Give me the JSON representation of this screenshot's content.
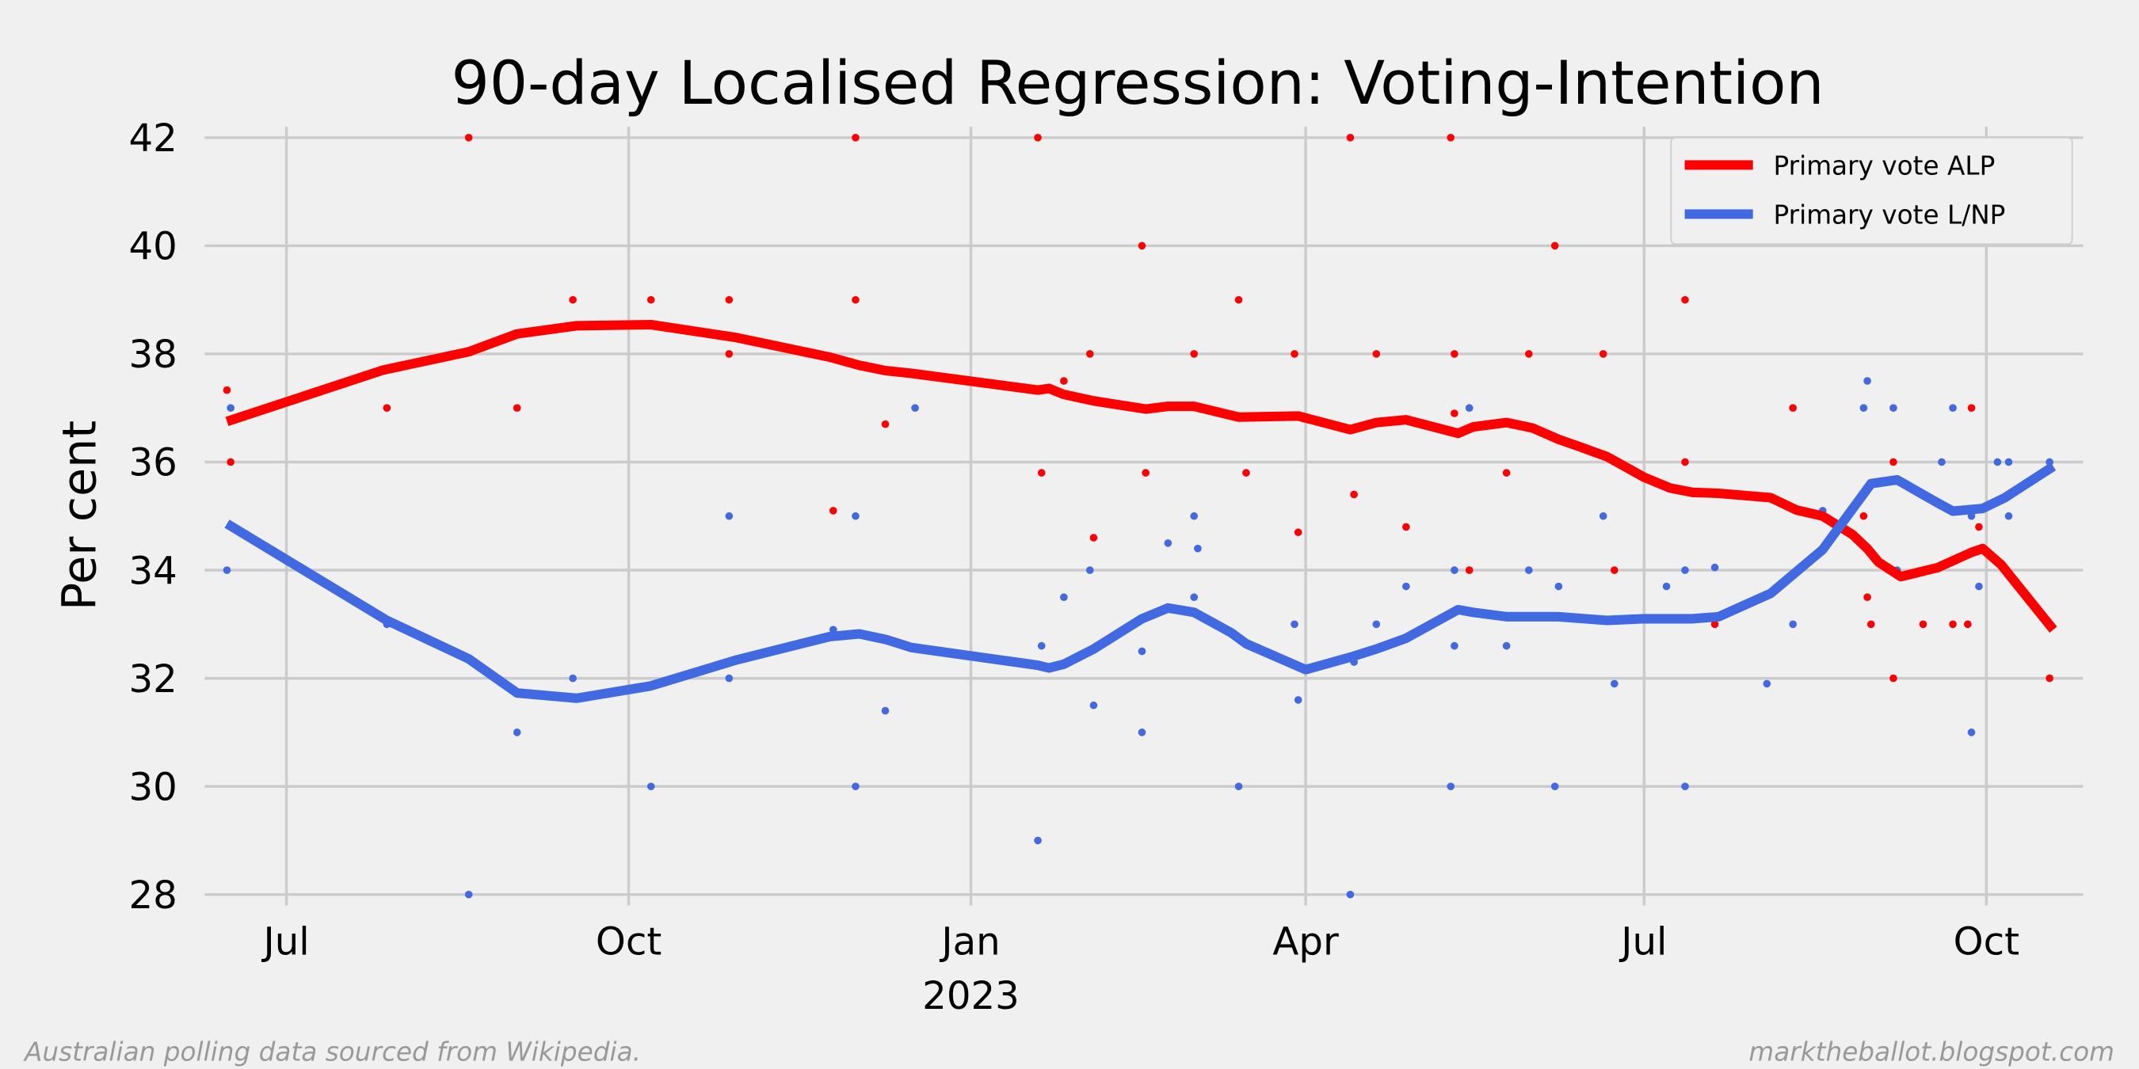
{
  "chart_data": {
    "type": "line",
    "title": "90-day Localised Regression: Voting-Intention",
    "xlabel": "",
    "ylabel": "Per cent",
    "ylim": [
      27.8,
      42.2
    ],
    "xlim": [
      "2022-06-09",
      "2023-10-27"
    ],
    "yticks": [
      28,
      30,
      32,
      34,
      36,
      38,
      40,
      42
    ],
    "xticks": [
      {
        "date": "2022-07-01",
        "label": "Jul",
        "sub": ""
      },
      {
        "date": "2022-10-01",
        "label": "Oct",
        "sub": ""
      },
      {
        "date": "2023-01-01",
        "label": "Jan",
        "sub": "2023"
      },
      {
        "date": "2023-04-01",
        "label": "Apr",
        "sub": ""
      },
      {
        "date": "2023-07-01",
        "label": "Jul",
        "sub": ""
      },
      {
        "date": "2023-10-01",
        "label": "Oct",
        "sub": ""
      }
    ],
    "grid": true,
    "legend_position": "top-right",
    "series": [
      {
        "name": "Primary vote ALP",
        "color": "#ff0000",
        "line": [
          [
            "2022-06-15",
            36.75
          ],
          [
            "2022-07-27",
            37.7
          ],
          [
            "2022-08-19",
            38.04
          ],
          [
            "2022-09-01",
            38.37
          ],
          [
            "2022-09-17",
            38.52
          ],
          [
            "2022-10-07",
            38.54
          ],
          [
            "2022-10-30",
            38.3
          ],
          [
            "2022-11-24",
            37.94
          ],
          [
            "2022-12-02",
            37.79
          ],
          [
            "2022-12-09",
            37.69
          ],
          [
            "2022-12-16",
            37.64
          ],
          [
            "2023-01-19",
            37.33
          ],
          [
            "2023-01-22",
            37.36
          ],
          [
            "2023-01-26",
            37.25
          ],
          [
            "2023-02-03",
            37.13
          ],
          [
            "2023-02-17",
            36.98
          ],
          [
            "2023-02-23",
            37.03
          ],
          [
            "2023-03-02",
            37.03
          ],
          [
            "2023-03-14",
            36.83
          ],
          [
            "2023-03-30",
            36.85
          ],
          [
            "2023-04-13",
            36.6
          ],
          [
            "2023-04-20",
            36.73
          ],
          [
            "2023-04-28",
            36.78
          ],
          [
            "2023-05-12",
            36.53
          ],
          [
            "2023-05-16",
            36.65
          ],
          [
            "2023-05-25",
            36.73
          ],
          [
            "2023-06-01",
            36.63
          ],
          [
            "2023-06-08",
            36.42
          ],
          [
            "2023-06-13",
            36.3
          ],
          [
            "2023-06-21",
            36.1
          ],
          [
            "2023-07-01",
            35.72
          ],
          [
            "2023-07-08",
            35.52
          ],
          [
            "2023-07-14",
            35.44
          ],
          [
            "2023-07-21",
            35.42
          ],
          [
            "2023-08-04",
            35.34
          ],
          [
            "2023-08-11",
            35.11
          ],
          [
            "2023-08-18",
            35.0
          ],
          [
            "2023-08-26",
            34.66
          ],
          [
            "2023-08-30",
            34.4
          ],
          [
            "2023-09-02",
            34.15
          ],
          [
            "2023-09-08",
            33.88
          ],
          [
            "2023-09-18",
            34.05
          ],
          [
            "2023-09-27",
            34.33
          ],
          [
            "2023-09-30",
            34.4
          ],
          [
            "2023-10-05",
            34.1
          ],
          [
            "2023-10-19",
            32.9
          ]
        ],
        "polls": [
          [
            "2022-06-15",
            37.33
          ],
          [
            "2022-06-16",
            36.0
          ],
          [
            "2022-07-28",
            37.0
          ],
          [
            "2022-08-19",
            42.0
          ],
          [
            "2022-09-01",
            37.0
          ],
          [
            "2022-09-16",
            39.0
          ],
          [
            "2022-10-07",
            39.0
          ],
          [
            "2022-10-28",
            39.0
          ],
          [
            "2022-10-28",
            38.0
          ],
          [
            "2022-11-25",
            35.1
          ],
          [
            "2022-12-01",
            42.0
          ],
          [
            "2022-12-01",
            39.0
          ],
          [
            "2022-12-09",
            36.7
          ],
          [
            "2023-01-19",
            42.0
          ],
          [
            "2023-01-20",
            35.8
          ],
          [
            "2023-01-26",
            37.5
          ],
          [
            "2023-02-02",
            38.0
          ],
          [
            "2023-02-03",
            34.6
          ],
          [
            "2023-02-16",
            40.0
          ],
          [
            "2023-02-17",
            35.8
          ],
          [
            "2023-03-02",
            38.0
          ],
          [
            "2023-03-14",
            39.0
          ],
          [
            "2023-03-16",
            35.8
          ],
          [
            "2023-03-29",
            38.0
          ],
          [
            "2023-03-30",
            34.7
          ],
          [
            "2023-04-13",
            42.0
          ],
          [
            "2023-04-14",
            35.4
          ],
          [
            "2023-04-20",
            38.0
          ],
          [
            "2023-04-28",
            34.8
          ],
          [
            "2023-05-10",
            42.0
          ],
          [
            "2023-05-11",
            38.0
          ],
          [
            "2023-05-11",
            36.9
          ],
          [
            "2023-05-15",
            34.0
          ],
          [
            "2023-05-25",
            35.8
          ],
          [
            "2023-05-31",
            38.0
          ],
          [
            "2023-06-07",
            40.0
          ],
          [
            "2023-06-20",
            38.0
          ],
          [
            "2023-06-23",
            34.0
          ],
          [
            "2023-07-12",
            39.0
          ],
          [
            "2023-07-12",
            36.0
          ],
          [
            "2023-07-20",
            33.0
          ],
          [
            "2023-08-10",
            37.0
          ],
          [
            "2023-08-13",
            35.1
          ],
          [
            "2023-08-29",
            35.0
          ],
          [
            "2023-08-30",
            33.5
          ],
          [
            "2023-08-31",
            33.0
          ],
          [
            "2023-09-06",
            36.0
          ],
          [
            "2023-09-06",
            32.0
          ],
          [
            "2023-09-14",
            33.0
          ],
          [
            "2023-09-22",
            33.0
          ],
          [
            "2023-09-26",
            33.0
          ],
          [
            "2023-09-27",
            37.0
          ],
          [
            "2023-09-29",
            34.8
          ],
          [
            "2023-10-18",
            32.0
          ]
        ]
      },
      {
        "name": "Primary vote L/NP",
        "color": "#4169e1",
        "line": [
          [
            "2022-06-15",
            34.86
          ],
          [
            "2022-07-28",
            33.07
          ],
          [
            "2022-08-19",
            32.36
          ],
          [
            "2022-09-01",
            31.73
          ],
          [
            "2022-09-17",
            31.63
          ],
          [
            "2022-10-07",
            31.86
          ],
          [
            "2022-10-30",
            32.34
          ],
          [
            "2022-11-24",
            32.77
          ],
          [
            "2022-12-02",
            32.82
          ],
          [
            "2022-12-09",
            32.72
          ],
          [
            "2022-12-16",
            32.57
          ],
          [
            "2023-01-19",
            32.24
          ],
          [
            "2023-01-22",
            32.19
          ],
          [
            "2023-01-26",
            32.26
          ],
          [
            "2023-02-03",
            32.54
          ],
          [
            "2023-02-16",
            33.1
          ],
          [
            "2023-02-23",
            33.3
          ],
          [
            "2023-03-02",
            33.22
          ],
          [
            "2023-03-12",
            32.84
          ],
          [
            "2023-03-16",
            32.64
          ],
          [
            "2023-04-01",
            32.16
          ],
          [
            "2023-04-13",
            32.39
          ],
          [
            "2023-04-20",
            32.54
          ],
          [
            "2023-04-28",
            32.74
          ],
          [
            "2023-05-12",
            33.27
          ],
          [
            "2023-05-16",
            33.22
          ],
          [
            "2023-05-25",
            33.14
          ],
          [
            "2023-06-08",
            33.14
          ],
          [
            "2023-06-21",
            33.07
          ],
          [
            "2023-07-01",
            33.1
          ],
          [
            "2023-07-14",
            33.1
          ],
          [
            "2023-07-21",
            33.14
          ],
          [
            "2023-08-04",
            33.57
          ],
          [
            "2023-08-18",
            34.38
          ],
          [
            "2023-08-31",
            35.6
          ],
          [
            "2023-09-07",
            35.67
          ],
          [
            "2023-09-18",
            35.24
          ],
          [
            "2023-09-22",
            35.09
          ],
          [
            "2023-09-30",
            35.14
          ],
          [
            "2023-10-06",
            35.34
          ],
          [
            "2023-10-19",
            35.92
          ]
        ],
        "polls": [
          [
            "2022-06-16",
            37.0
          ],
          [
            "2022-06-15",
            34.0
          ],
          [
            "2022-07-28",
            33.0
          ],
          [
            "2022-08-19",
            28.0
          ],
          [
            "2022-09-01",
            31.0
          ],
          [
            "2022-09-16",
            32.0
          ],
          [
            "2022-10-07",
            30.0
          ],
          [
            "2022-10-28",
            35.0
          ],
          [
            "2022-10-28",
            32.0
          ],
          [
            "2022-11-25",
            32.9
          ],
          [
            "2022-12-01",
            35.0
          ],
          [
            "2022-12-01",
            30.0
          ],
          [
            "2022-12-09",
            31.4
          ],
          [
            "2022-12-17",
            37.0
          ],
          [
            "2023-01-19",
            29.0
          ],
          [
            "2023-01-20",
            32.6
          ],
          [
            "2023-01-26",
            33.5
          ],
          [
            "2023-02-02",
            34.0
          ],
          [
            "2023-02-03",
            31.5
          ],
          [
            "2023-02-16",
            32.5
          ],
          [
            "2023-02-16",
            31.0
          ],
          [
            "2023-02-23",
            34.5
          ],
          [
            "2023-03-02",
            35.0
          ],
          [
            "2023-03-03",
            34.4
          ],
          [
            "2023-03-02",
            33.5
          ],
          [
            "2023-03-14",
            30.0
          ],
          [
            "2023-03-29",
            33.0
          ],
          [
            "2023-03-30",
            31.6
          ],
          [
            "2023-04-13",
            28.0
          ],
          [
            "2023-04-14",
            32.3
          ],
          [
            "2023-04-20",
            33.0
          ],
          [
            "2023-04-28",
            33.7
          ],
          [
            "2023-05-11",
            34.0
          ],
          [
            "2023-05-11",
            32.6
          ],
          [
            "2023-05-10",
            30.0
          ],
          [
            "2023-05-15",
            37.0
          ],
          [
            "2023-05-25",
            32.6
          ],
          [
            "2023-05-31",
            34.0
          ],
          [
            "2023-06-07",
            30.0
          ],
          [
            "2023-06-08",
            33.7
          ],
          [
            "2023-06-20",
            35.0
          ],
          [
            "2023-06-23",
            31.9
          ],
          [
            "2023-07-07",
            33.7
          ],
          [
            "2023-07-12",
            34.0
          ],
          [
            "2023-07-12",
            30.0
          ],
          [
            "2023-07-20",
            34.05
          ],
          [
            "2023-08-03",
            31.9
          ],
          [
            "2023-08-10",
            33.0
          ],
          [
            "2023-08-18",
            35.1
          ],
          [
            "2023-08-29",
            37.0
          ],
          [
            "2023-08-30",
            37.5
          ],
          [
            "2023-09-06",
            37.0
          ],
          [
            "2023-09-07",
            34.0
          ],
          [
            "2023-09-19",
            36.0
          ],
          [
            "2023-09-22",
            37.0
          ],
          [
            "2023-09-27",
            35.0
          ],
          [
            "2023-09-29",
            33.7
          ],
          [
            "2023-09-27",
            31.0
          ],
          [
            "2023-10-04",
            36.0
          ],
          [
            "2023-10-07",
            36.0
          ],
          [
            "2023-10-07",
            35.0
          ],
          [
            "2023-10-18",
            36.0
          ]
        ]
      }
    ]
  },
  "footer": {
    "source": "Australian polling data sourced from Wikipedia.",
    "site": "marktheballot.blogspot.com"
  }
}
